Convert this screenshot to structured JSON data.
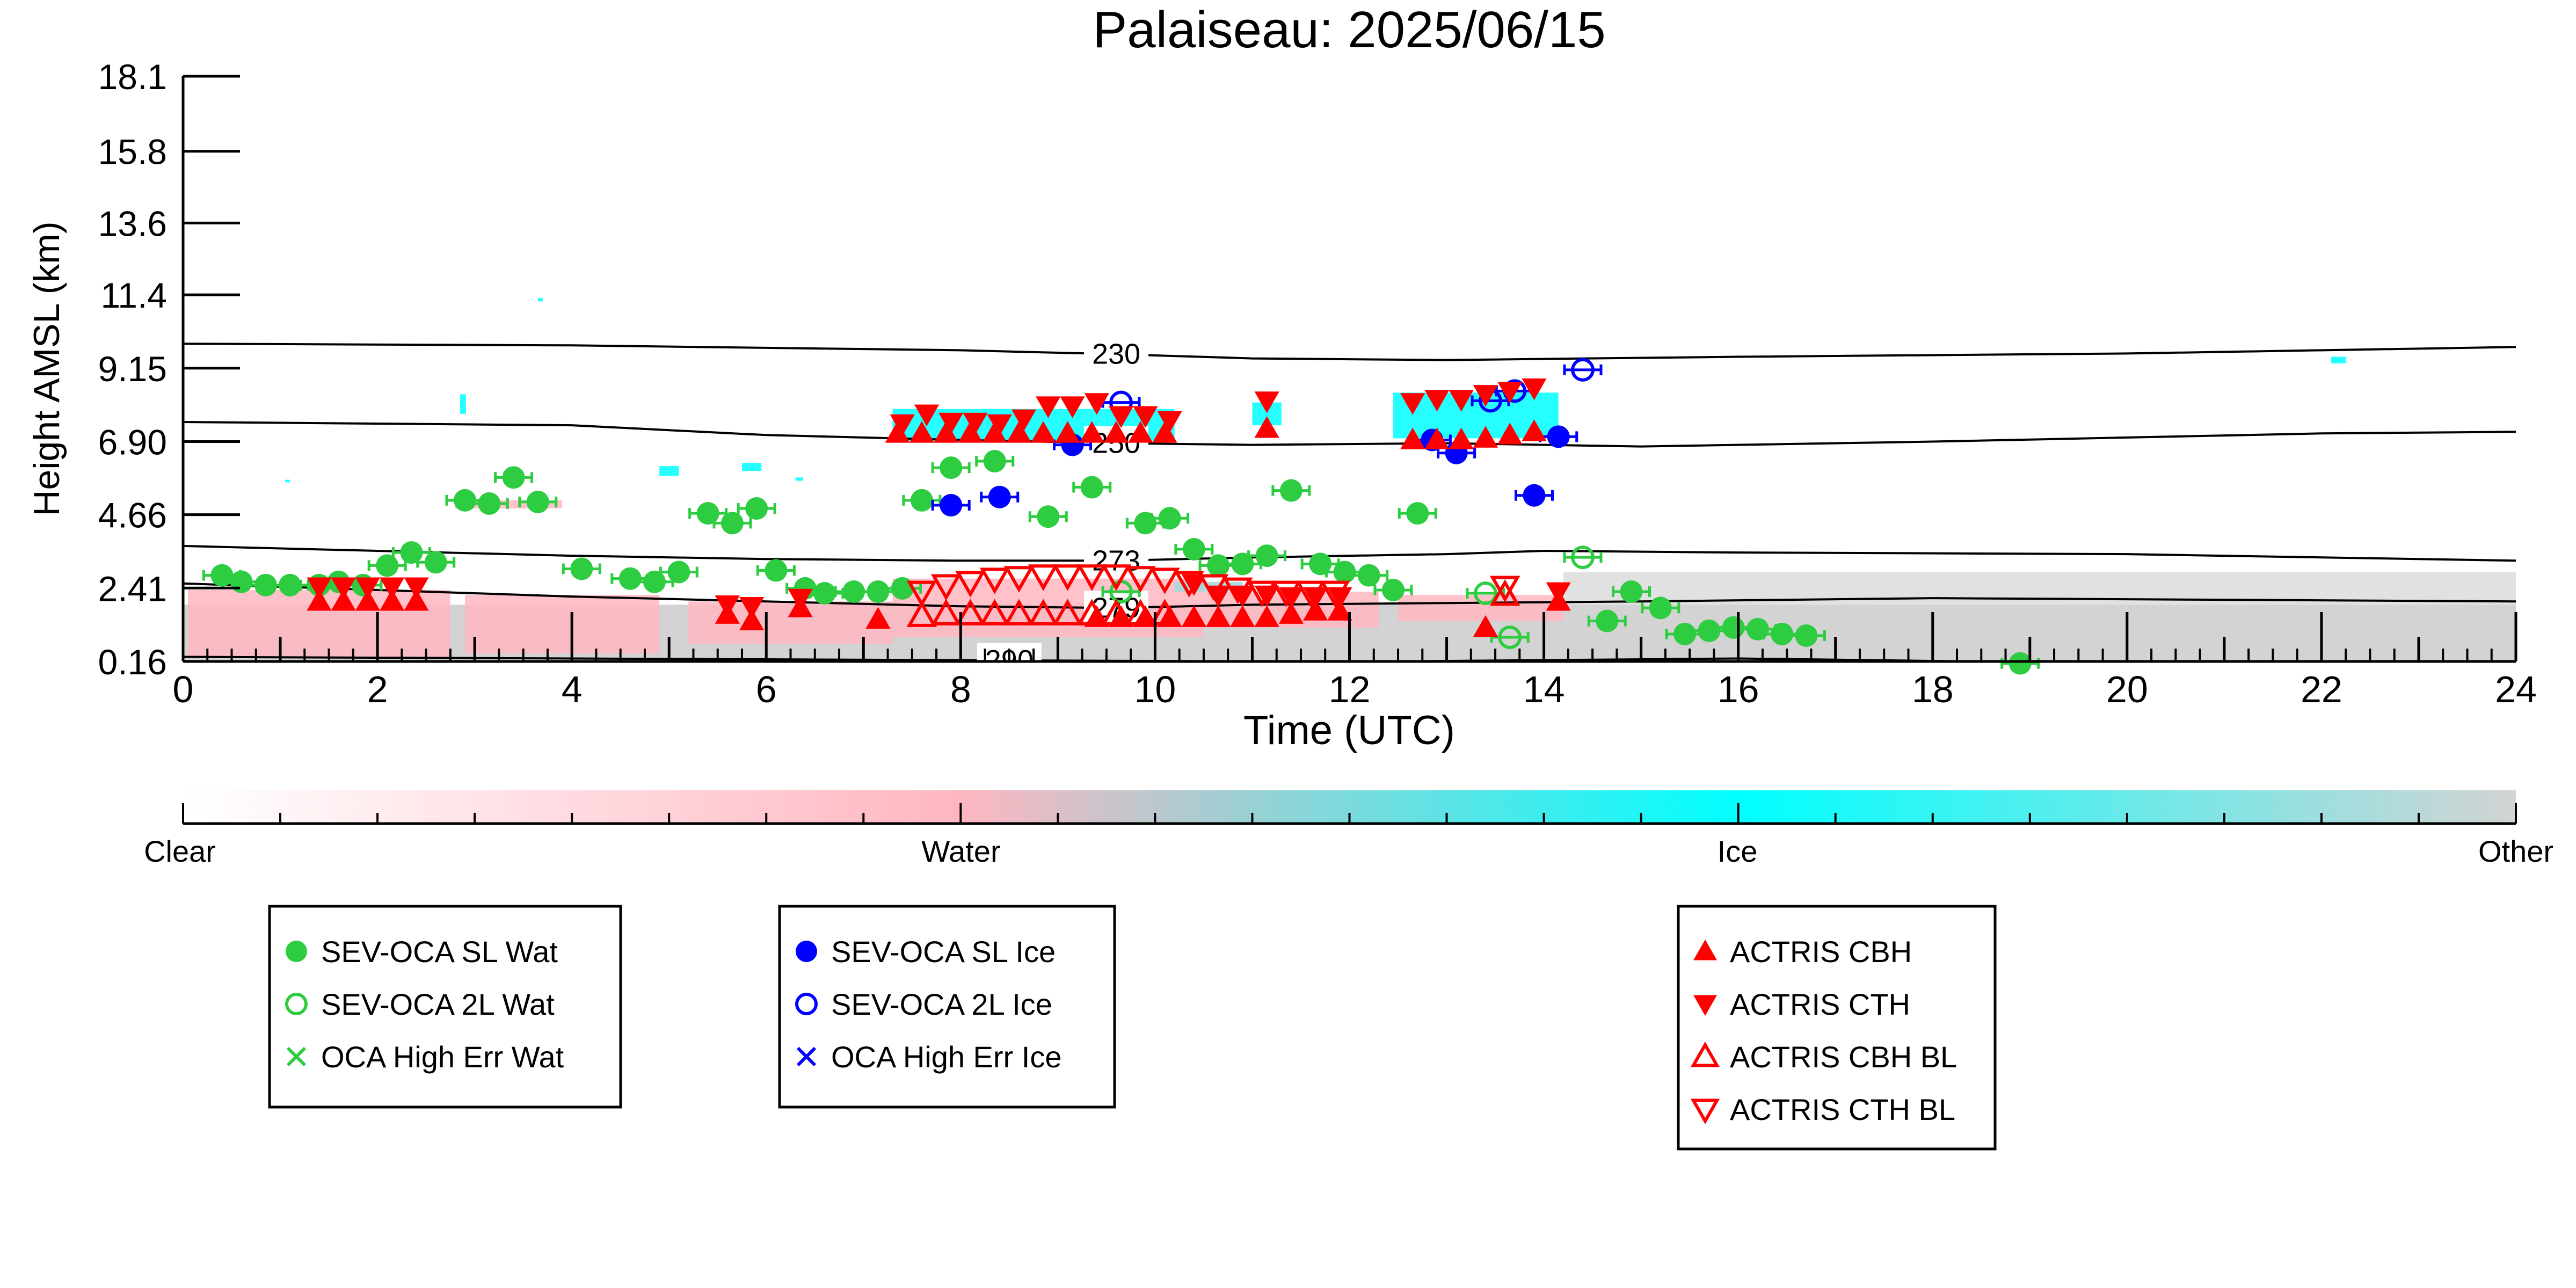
{
  "colors": {
    "water": "#ffb6c1",
    "ice": "#00ffff",
    "other": "#d3d3d3",
    "sev_wat": "#2ecc40",
    "sev_ice": "#0000ff",
    "actris": "#ff0000",
    "axis": "#000000"
  },
  "chart_data": {
    "type": "scatter",
    "title": "Palaiseau: 2025/06/15",
    "xlabel": "Time (UTC)",
    "ylabel": "Height AMSL (km)",
    "xlim": [
      0,
      24
    ],
    "ylim": [
      0.16,
      18.1
    ],
    "x_ticks": [
      0,
      2,
      4,
      6,
      8,
      10,
      12,
      14,
      16,
      18,
      20,
      22,
      24
    ],
    "x_tick_labels": [
      "0",
      "2",
      "4",
      "6",
      "8",
      "10",
      "12",
      "14",
      "16",
      "18",
      "20",
      "22",
      "24"
    ],
    "y_ticks": [
      0.16,
      2.41,
      4.66,
      6.9,
      9.15,
      11.4,
      13.6,
      15.8,
      18.1
    ],
    "y_tick_labels": [
      "0.16",
      "2.41",
      "4.66",
      "6.90",
      "9.15",
      "11.4",
      "13.6",
      "15.8",
      "18.1"
    ],
    "grid": false,
    "colorbar": {
      "labels": [
        "Clear",
        "Water",
        "Ice",
        "Other"
      ]
    },
    "isotherms": [
      {
        "label": "230",
        "label_x": 9.6,
        "points": [
          [
            0,
            9.9
          ],
          [
            4,
            9.85
          ],
          [
            8,
            9.7
          ],
          [
            9.6,
            9.58
          ],
          [
            11,
            9.45
          ],
          [
            13,
            9.4
          ],
          [
            16,
            9.5
          ],
          [
            20,
            9.6
          ],
          [
            24,
            9.8
          ]
        ]
      },
      {
        "label": "250",
        "label_x": 9.6,
        "points": [
          [
            0,
            7.5
          ],
          [
            4,
            7.4
          ],
          [
            6,
            7.1
          ],
          [
            8,
            6.95
          ],
          [
            9.6,
            6.85
          ],
          [
            11,
            6.8
          ],
          [
            13,
            6.85
          ],
          [
            15,
            6.75
          ],
          [
            18,
            6.9
          ],
          [
            22,
            7.15
          ],
          [
            24,
            7.2
          ]
        ]
      },
      {
        "label": "273",
        "label_x": 9.6,
        "points": [
          [
            0,
            3.7
          ],
          [
            2,
            3.55
          ],
          [
            4,
            3.4
          ],
          [
            6,
            3.3
          ],
          [
            8,
            3.25
          ],
          [
            9.6,
            3.25
          ],
          [
            11,
            3.35
          ],
          [
            13,
            3.45
          ],
          [
            14,
            3.55
          ],
          [
            16,
            3.5
          ],
          [
            20,
            3.45
          ],
          [
            22,
            3.35
          ],
          [
            24,
            3.25
          ]
        ]
      },
      {
        "label": "279",
        "label_x": 9.6,
        "points": [
          [
            0,
            2.55
          ],
          [
            2,
            2.35
          ],
          [
            4,
            2.15
          ],
          [
            6,
            2.0
          ],
          [
            8,
            1.85
          ],
          [
            9.6,
            1.8
          ],
          [
            11,
            1.9
          ],
          [
            13,
            1.95
          ],
          [
            15,
            2.0
          ],
          [
            18,
            2.1
          ],
          [
            24,
            2.0
          ]
        ]
      },
      {
        "label": "290",
        "label_x": 8.5,
        "points": [
          [
            0,
            0.3
          ],
          [
            4,
            0.25
          ],
          [
            8,
            0.2
          ],
          [
            12,
            0.15
          ],
          [
            16,
            0.25
          ],
          [
            20,
            0.1
          ],
          [
            24,
            0.05
          ]
        ]
      }
    ],
    "series": [
      {
        "name": "SEV-OCA SL Wat",
        "marker": "circle-filled",
        "color": "#2ecc40",
        "points": [
          [
            0.4,
            2.8
          ],
          [
            0.6,
            2.6
          ],
          [
            0.85,
            2.5
          ],
          [
            1.1,
            2.5
          ],
          [
            1.4,
            2.5
          ],
          [
            1.6,
            2.6
          ],
          [
            1.85,
            2.5
          ],
          [
            2.1,
            3.1
          ],
          [
            2.35,
            3.5
          ],
          [
            2.6,
            3.2
          ],
          [
            2.9,
            5.1
          ],
          [
            3.15,
            5.0
          ],
          [
            3.4,
            5.8
          ],
          [
            3.65,
            5.05
          ],
          [
            4.1,
            3.0
          ],
          [
            4.6,
            2.7
          ],
          [
            4.85,
            2.6
          ],
          [
            5.1,
            2.9
          ],
          [
            5.4,
            4.7
          ],
          [
            5.65,
            4.4
          ],
          [
            5.9,
            4.85
          ],
          [
            6.1,
            2.95
          ],
          [
            6.4,
            2.4
          ],
          [
            6.6,
            2.25
          ],
          [
            6.9,
            2.3
          ],
          [
            7.15,
            2.3
          ],
          [
            7.4,
            2.4
          ],
          [
            7.6,
            5.1
          ],
          [
            7.9,
            6.1
          ],
          [
            8.35,
            6.3
          ],
          [
            8.9,
            4.6
          ],
          [
            9.35,
            5.5
          ],
          [
            9.9,
            4.4
          ],
          [
            10.15,
            4.55
          ],
          [
            10.4,
            3.6
          ],
          [
            10.65,
            3.1
          ],
          [
            10.9,
            3.15
          ],
          [
            11.15,
            3.4
          ],
          [
            11.4,
            5.4
          ],
          [
            11.7,
            3.15
          ],
          [
            11.95,
            2.9
          ],
          [
            12.2,
            2.8
          ],
          [
            12.45,
            2.35
          ],
          [
            12.7,
            4.7
          ],
          [
            14.65,
            1.4
          ],
          [
            14.9,
            2.3
          ],
          [
            15.2,
            1.8
          ],
          [
            15.45,
            1.0
          ],
          [
            15.7,
            1.1
          ],
          [
            15.95,
            1.2
          ],
          [
            16.2,
            1.15
          ],
          [
            16.45,
            1.0
          ],
          [
            16.7,
            0.95
          ],
          [
            18.9,
            0.1
          ]
        ]
      },
      {
        "name": "SEV-OCA 2L Wat",
        "marker": "circle-open",
        "color": "#2ecc40",
        "points": [
          [
            9.65,
            2.3
          ],
          [
            13.4,
            2.25
          ],
          [
            13.65,
            0.9
          ],
          [
            14.4,
            3.35
          ]
        ]
      },
      {
        "name": "OCA High Err Wat",
        "marker": "cross",
        "color": "#2ecc40",
        "points": []
      },
      {
        "name": "SEV-OCA SL Ice",
        "marker": "circle-filled",
        "color": "#0000ff",
        "points": [
          [
            7.9,
            4.95
          ],
          [
            8.4,
            5.2
          ],
          [
            9.15,
            6.8
          ],
          [
            12.85,
            6.95
          ],
          [
            13.1,
            6.55
          ],
          [
            13.9,
            5.25
          ],
          [
            14.15,
            7.05
          ]
        ]
      },
      {
        "name": "SEV-OCA 2L Ice",
        "marker": "circle-open",
        "color": "#0000ff",
        "points": [
          [
            9.65,
            8.1
          ],
          [
            13.45,
            8.15
          ],
          [
            13.7,
            8.45
          ],
          [
            14.4,
            9.1
          ]
        ]
      },
      {
        "name": "OCA High Err Ice",
        "marker": "cross",
        "color": "#0000ff",
        "points": []
      },
      {
        "name": "ACTRIS CBH",
        "marker": "triangle-up-filled",
        "color": "#ff0000",
        "points": [
          [
            1.4,
            2.0
          ],
          [
            1.65,
            2.0
          ],
          [
            1.9,
            2.0
          ],
          [
            2.15,
            2.0
          ],
          [
            2.4,
            2.0
          ],
          [
            5.6,
            1.6
          ],
          [
            5.85,
            1.4
          ],
          [
            6.35,
            1.8
          ],
          [
            7.15,
            1.45
          ],
          [
            7.35,
            7.15
          ],
          [
            7.6,
            7.15
          ],
          [
            7.85,
            7.15
          ],
          [
            8.1,
            7.15
          ],
          [
            8.35,
            7.15
          ],
          [
            8.6,
            7.15
          ],
          [
            8.85,
            7.15
          ],
          [
            9.1,
            7.15
          ],
          [
            9.35,
            7.15
          ],
          [
            9.6,
            7.15
          ],
          [
            9.85,
            7.15
          ],
          [
            10.1,
            7.15
          ],
          [
            9.4,
            1.5
          ],
          [
            9.65,
            1.5
          ],
          [
            9.9,
            1.5
          ],
          [
            10.15,
            1.5
          ],
          [
            10.4,
            1.5
          ],
          [
            10.65,
            1.5
          ],
          [
            10.9,
            1.5
          ],
          [
            11.15,
            1.5
          ],
          [
            11.4,
            1.6
          ],
          [
            11.65,
            1.7
          ],
          [
            11.9,
            1.7
          ],
          [
            11.15,
            7.3
          ],
          [
            12.65,
            6.95
          ],
          [
            12.9,
            6.95
          ],
          [
            13.15,
            6.95
          ],
          [
            13.4,
            7.0
          ],
          [
            13.65,
            7.1
          ],
          [
            13.9,
            7.2
          ],
          [
            13.4,
            1.2
          ],
          [
            14.15,
            2.0
          ]
        ]
      },
      {
        "name": "ACTRIS CTH",
        "marker": "triangle-down-filled",
        "color": "#ff0000",
        "points": [
          [
            1.4,
            2.45
          ],
          [
            1.65,
            2.45
          ],
          [
            1.9,
            2.45
          ],
          [
            2.15,
            2.45
          ],
          [
            2.4,
            2.45
          ],
          [
            5.6,
            1.9
          ],
          [
            5.85,
            1.85
          ],
          [
            6.35,
            2.1
          ],
          [
            7.4,
            7.45
          ],
          [
            7.65,
            7.75
          ],
          [
            7.9,
            7.5
          ],
          [
            8.15,
            7.5
          ],
          [
            8.4,
            7.45
          ],
          [
            8.65,
            7.6
          ],
          [
            8.9,
            8.0
          ],
          [
            9.15,
            8.0
          ],
          [
            9.4,
            8.1
          ],
          [
            9.65,
            7.7
          ],
          [
            9.9,
            7.7
          ],
          [
            10.15,
            7.55
          ],
          [
            10.4,
            2.55
          ],
          [
            10.65,
            2.2
          ],
          [
            10.9,
            2.2
          ],
          [
            11.15,
            2.2
          ],
          [
            11.4,
            2.15
          ],
          [
            11.65,
            2.15
          ],
          [
            11.9,
            2.15
          ],
          [
            11.15,
            8.15
          ],
          [
            12.65,
            8.1
          ],
          [
            12.9,
            8.2
          ],
          [
            13.15,
            8.2
          ],
          [
            13.4,
            8.35
          ],
          [
            13.65,
            8.45
          ],
          [
            13.9,
            8.55
          ],
          [
            14.15,
            2.3
          ]
        ]
      },
      {
        "name": "ACTRIS CBH BL",
        "marker": "triangle-up-open",
        "color": "#ff0000",
        "points": [
          [
            7.6,
            1.55
          ],
          [
            7.85,
            1.6
          ],
          [
            8.1,
            1.6
          ],
          [
            8.35,
            1.6
          ],
          [
            8.6,
            1.6
          ],
          [
            8.85,
            1.6
          ],
          [
            9.1,
            1.6
          ],
          [
            9.35,
            1.6
          ],
          [
            9.6,
            1.6
          ],
          [
            9.85,
            1.6
          ],
          [
            10.1,
            1.6
          ],
          [
            13.6,
            2.2
          ]
        ]
      },
      {
        "name": "ACTRIS CTH BL",
        "marker": "triangle-down-open",
        "color": "#ff0000",
        "points": [
          [
            7.6,
            2.3
          ],
          [
            7.85,
            2.5
          ],
          [
            8.1,
            2.6
          ],
          [
            8.35,
            2.7
          ],
          [
            8.6,
            2.75
          ],
          [
            8.85,
            2.8
          ],
          [
            9.1,
            2.8
          ],
          [
            9.35,
            2.8
          ],
          [
            9.6,
            2.8
          ],
          [
            9.85,
            2.75
          ],
          [
            10.1,
            2.7
          ],
          [
            10.35,
            2.6
          ],
          [
            10.6,
            2.5
          ],
          [
            10.85,
            2.4
          ],
          [
            11.1,
            2.3
          ],
          [
            11.35,
            2.3
          ],
          [
            11.6,
            2.3
          ],
          [
            11.85,
            2.3
          ],
          [
            13.6,
            2.45
          ]
        ]
      }
    ],
    "legend_groups": [
      [
        "SEV-OCA SL Wat",
        "SEV-OCA 2L Wat",
        "OCA High Err Wat"
      ],
      [
        "SEV-OCA SL Ice",
        "SEV-OCA 2L Ice",
        "OCA High Err Ice"
      ],
      [
        "ACTRIS CBH",
        "ACTRIS CTH",
        "ACTRIS CBH BL",
        "ACTRIS CTH BL"
      ]
    ]
  }
}
